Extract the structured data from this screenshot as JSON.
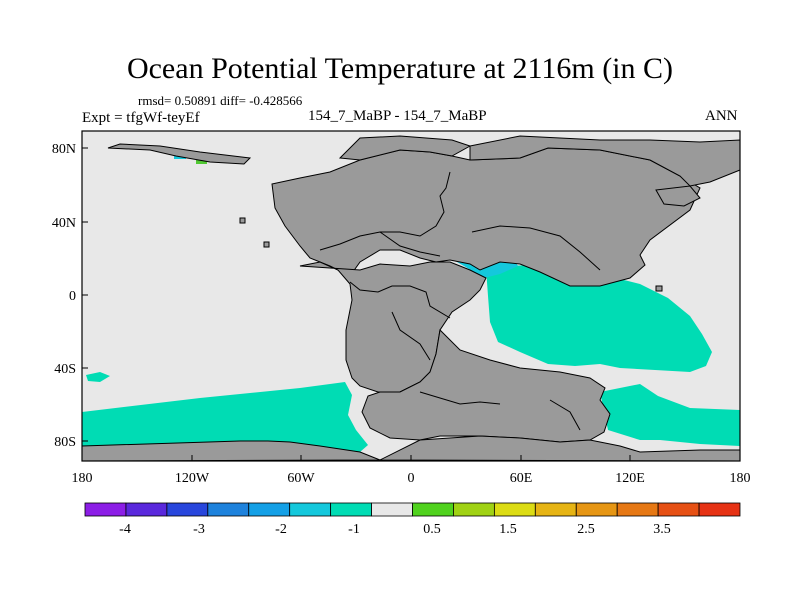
{
  "figure": {
    "title": "Ocean Potential Temperature at 2116m (in C)",
    "stats": "rmsd= 0.50891 diff= -0.428566",
    "expt": "Expt = tfgWf-teyEf",
    "cases": "154_7_MaBP - 154_7_MaBP",
    "season": "ANN"
  },
  "axes": {
    "lat_ticks": [
      "80N",
      "40N",
      "0",
      "40S",
      "80S"
    ],
    "lon_ticks": [
      "180",
      "120W",
      "60W",
      "0",
      "60E",
      "120E",
      "180"
    ],
    "lat_range": [
      -90,
      90
    ],
    "lon_range": [
      -180,
      180
    ]
  },
  "colors": {
    "land": "#9a9a9a",
    "ocean_neutral": "#e8e8e8",
    "anom_aqua": "#00dcb4",
    "anom_cyan": "#14c8dc",
    "anom_blue": "#1e96dc",
    "anom_green": "#50c832"
  },
  "colorbar": {
    "colors": [
      "#8c1ee6",
      "#5a28dc",
      "#2846dc",
      "#1e82dc",
      "#14a0e6",
      "#14c8dc",
      "#00dcb4",
      "#e8e8e8",
      "#50d21e",
      "#a0d214",
      "#dcdc14",
      "#e6b414",
      "#e69614",
      "#e67814",
      "#e65014",
      "#e63214"
    ],
    "labels": [
      "-4",
      "-3",
      "-2",
      "-1",
      "0.5",
      "1.5",
      "2.5",
      "3.5"
    ]
  }
}
